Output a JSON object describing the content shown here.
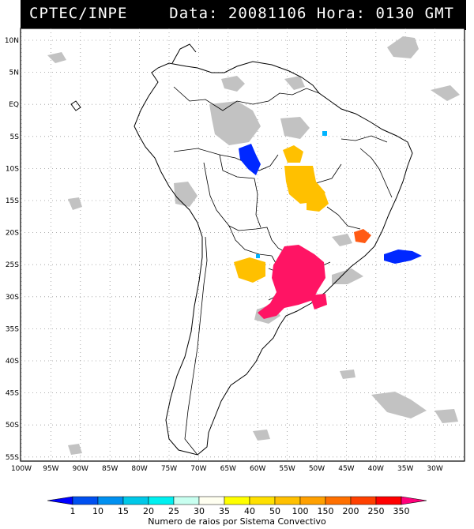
{
  "header": {
    "source": "CPTEC/INPE",
    "datetime": "Data: 20081106 Hora: 0130 GMT"
  },
  "map": {
    "lat_labels": [
      "10N",
      "5N",
      "EQ",
      "5S",
      "10S",
      "15S",
      "20S",
      "25S",
      "30S",
      "35S",
      "40S",
      "45S",
      "50S",
      "55S"
    ],
    "lon_labels": [
      "100W",
      "95W",
      "90W",
      "85W",
      "80W",
      "75W",
      "70W",
      "65W",
      "60W",
      "55W",
      "50W",
      "45W",
      "40W",
      "35W",
      "30W"
    ],
    "lat_range": [
      12,
      -56
    ],
    "lon_range": [
      -100,
      -28
    ],
    "grid": "dotted"
  },
  "legend": {
    "ticks": [
      "1",
      "10",
      "15",
      "20",
      "25",
      "30",
      "35",
      "40",
      "50",
      "100",
      "150",
      "200",
      "250",
      "350"
    ],
    "colors": [
      "#0000ff",
      "#0050f0",
      "#0090f0",
      "#00c8e8",
      "#00f0f0",
      "#c8fff0",
      "#fffff0",
      "#ffff00",
      "#ffe000",
      "#ffc000",
      "#ffa000",
      "#ff7000",
      "#ff4000",
      "#ff0000",
      "#ff007a"
    ],
    "caption": "Numero de raios por Sistema Convectivo"
  },
  "colors": {
    "cloud": "#c0c0c0",
    "yellow": "#ffc000",
    "magenta": "#ff1464",
    "blue": "#0028ff",
    "orange": "#ff5a14",
    "cyan": "#00b4ff"
  }
}
